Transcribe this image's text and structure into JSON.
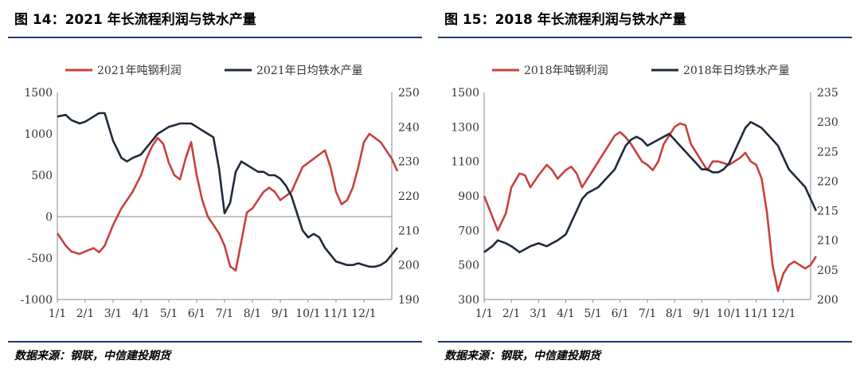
{
  "figures": [
    {
      "id": "fig14",
      "title": "图 14：2021 年长流程利润与铁水产量",
      "source": "数据来源：钢联，中信建投期货"
    },
    {
      "id": "fig15",
      "title": "图 15：2018 年长流程利润与铁水产量",
      "source": "数据来源：钢联，中信建投期货"
    }
  ],
  "chart_data": [
    {
      "type": "line",
      "legend_placement": "top",
      "x_ticks": [
        "1/1",
        "2/1",
        "3/1",
        "4/1",
        "5/1",
        "6/1",
        "7/1",
        "8/1",
        "9/1",
        "10/1",
        "11/1",
        "12/1"
      ],
      "xlim": [
        0,
        12
      ],
      "y_left": {
        "ticks": [
          1500,
          1000,
          500,
          0,
          -500,
          -1000
        ],
        "lim": [
          -1000,
          1500
        ],
        "zero_line": true
      },
      "y_right": {
        "ticks": [
          250,
          240,
          230,
          220,
          210,
          200,
          190
        ],
        "lim": [
          190,
          250
        ]
      },
      "series": [
        {
          "name": "2021年吨钢利润",
          "axis": "left",
          "color": "#c94040",
          "x": [
            0,
            0.3,
            0.5,
            0.8,
            1,
            1.3,
            1.5,
            1.7,
            2,
            2.3,
            2.5,
            2.7,
            3,
            3.2,
            3.4,
            3.6,
            3.8,
            4,
            4.2,
            4.4,
            4.6,
            4.8,
            5,
            5.2,
            5.4,
            5.6,
            5.8,
            6,
            6.2,
            6.4,
            6.6,
            6.8,
            7,
            7.2,
            7.4,
            7.6,
            7.8,
            8,
            8.2,
            8.4,
            8.6,
            8.8,
            9,
            9.2,
            9.4,
            9.6,
            9.8,
            10,
            10.2,
            10.4,
            10.6,
            10.8,
            11,
            11.2,
            11.4,
            11.6,
            11.8,
            12,
            12.2
          ],
          "values": [
            -200,
            -350,
            -420,
            -450,
            -420,
            -380,
            -430,
            -350,
            -100,
            100,
            200,
            300,
            500,
            700,
            850,
            950,
            880,
            650,
            500,
            450,
            700,
            900,
            500,
            200,
            0,
            -100,
            -200,
            -350,
            -600,
            -650,
            -300,
            50,
            100,
            200,
            300,
            350,
            300,
            200,
            250,
            300,
            450,
            600,
            650,
            700,
            750,
            800,
            600,
            300,
            150,
            200,
            350,
            600,
            900,
            1000,
            950,
            900,
            800,
            700,
            550
          ]
        },
        {
          "name": "2021年日均铁水产量",
          "axis": "right",
          "color": "#1f2a3c",
          "x": [
            0,
            0.3,
            0.5,
            0.8,
            1,
            1.3,
            1.5,
            1.7,
            2,
            2.3,
            2.5,
            2.7,
            3,
            3.2,
            3.4,
            3.6,
            3.8,
            4,
            4.2,
            4.4,
            4.6,
            4.8,
            5,
            5.2,
            5.4,
            5.6,
            5.8,
            6,
            6.2,
            6.4,
            6.6,
            6.8,
            7,
            7.2,
            7.4,
            7.6,
            7.8,
            8,
            8.2,
            8.4,
            8.6,
            8.8,
            9,
            9.2,
            9.4,
            9.6,
            9.8,
            10,
            10.2,
            10.4,
            10.6,
            10.8,
            11,
            11.2,
            11.4,
            11.6,
            11.8,
            12,
            12.2
          ],
          "values": [
            243,
            243.5,
            242,
            241,
            241.5,
            243,
            244,
            244,
            236,
            231,
            230,
            231,
            232,
            234,
            236,
            238,
            239,
            240,
            240.5,
            241,
            241,
            241,
            240,
            239,
            238,
            237,
            228,
            215,
            218,
            227,
            230,
            229,
            228,
            227,
            227,
            226,
            226,
            225,
            223,
            220,
            215,
            210,
            208,
            209,
            208,
            205,
            203,
            201,
            200.5,
            200,
            200,
            200.5,
            200,
            199.5,
            199.5,
            200,
            201,
            203,
            205
          ]
        }
      ]
    },
    {
      "type": "line",
      "legend_placement": "top",
      "x_ticks": [
        "1/1",
        "2/1",
        "3/1",
        "4/1",
        "5/1",
        "6/1",
        "7/1",
        "8/1",
        "9/1",
        "10/1",
        "11/1",
        "12/1"
      ],
      "xlim": [
        0,
        12
      ],
      "y_left": {
        "ticks": [
          1500,
          1300,
          1100,
          900,
          700,
          500,
          300
        ],
        "lim": [
          300,
          1500
        ]
      },
      "y_right": {
        "ticks": [
          235,
          230,
          225,
          220,
          215,
          210,
          205,
          200
        ],
        "lim": [
          200,
          235
        ]
      },
      "series": [
        {
          "name": "2018年吨钢利润",
          "axis": "left",
          "color": "#c94040",
          "x": [
            0,
            0.3,
            0.5,
            0.8,
            1,
            1.3,
            1.5,
            1.7,
            2,
            2.3,
            2.5,
            2.7,
            3,
            3.2,
            3.4,
            3.6,
            3.8,
            4,
            4.2,
            4.4,
            4.6,
            4.8,
            5,
            5.2,
            5.4,
            5.6,
            5.8,
            6,
            6.2,
            6.4,
            6.6,
            6.8,
            7,
            7.2,
            7.4,
            7.6,
            7.8,
            8,
            8.2,
            8.4,
            8.6,
            8.8,
            9,
            9.2,
            9.4,
            9.6,
            9.8,
            10,
            10.2,
            10.4,
            10.6,
            10.8,
            11,
            11.2,
            11.4,
            11.6,
            11.8,
            12,
            12.2
          ],
          "values": [
            900,
            780,
            700,
            800,
            950,
            1030,
            1020,
            950,
            1020,
            1080,
            1050,
            1000,
            1050,
            1070,
            1030,
            950,
            1000,
            1050,
            1100,
            1150,
            1200,
            1250,
            1270,
            1240,
            1200,
            1150,
            1100,
            1080,
            1050,
            1100,
            1200,
            1250,
            1300,
            1320,
            1310,
            1200,
            1150,
            1100,
            1050,
            1100,
            1100,
            1090,
            1080,
            1100,
            1120,
            1150,
            1100,
            1080,
            1000,
            800,
            500,
            350,
            450,
            500,
            520,
            500,
            480,
            500,
            550
          ]
        },
        {
          "name": "2018年日均铁水产量",
          "axis": "right",
          "color": "#1f2a3c",
          "x": [
            0,
            0.3,
            0.5,
            0.8,
            1,
            1.3,
            1.5,
            1.7,
            2,
            2.3,
            2.5,
            2.7,
            3,
            3.2,
            3.4,
            3.6,
            3.8,
            4,
            4.2,
            4.4,
            4.6,
            4.8,
            5,
            5.2,
            5.4,
            5.6,
            5.8,
            6,
            6.2,
            6.4,
            6.6,
            6.8,
            7,
            7.2,
            7.4,
            7.6,
            7.8,
            8,
            8.2,
            8.4,
            8.6,
            8.8,
            9,
            9.2,
            9.4,
            9.6,
            9.8,
            10,
            10.2,
            10.4,
            10.6,
            10.8,
            11,
            11.2,
            11.4,
            11.6,
            11.8,
            12,
            12.2
          ],
          "values": [
            208,
            209,
            210,
            209.5,
            209,
            208,
            208.5,
            209,
            209.5,
            209,
            209.5,
            210,
            211,
            213,
            215,
            217,
            218,
            218.5,
            219,
            220,
            221,
            222,
            224,
            226,
            227,
            227.5,
            227,
            226,
            226.5,
            227,
            227.5,
            228,
            227,
            226,
            225,
            224,
            223,
            222,
            222,
            221.5,
            221.5,
            222,
            223,
            225,
            227,
            229,
            230,
            229.5,
            229,
            228,
            227,
            226,
            224,
            222,
            221,
            220,
            219,
            217,
            215
          ]
        }
      ]
    }
  ]
}
